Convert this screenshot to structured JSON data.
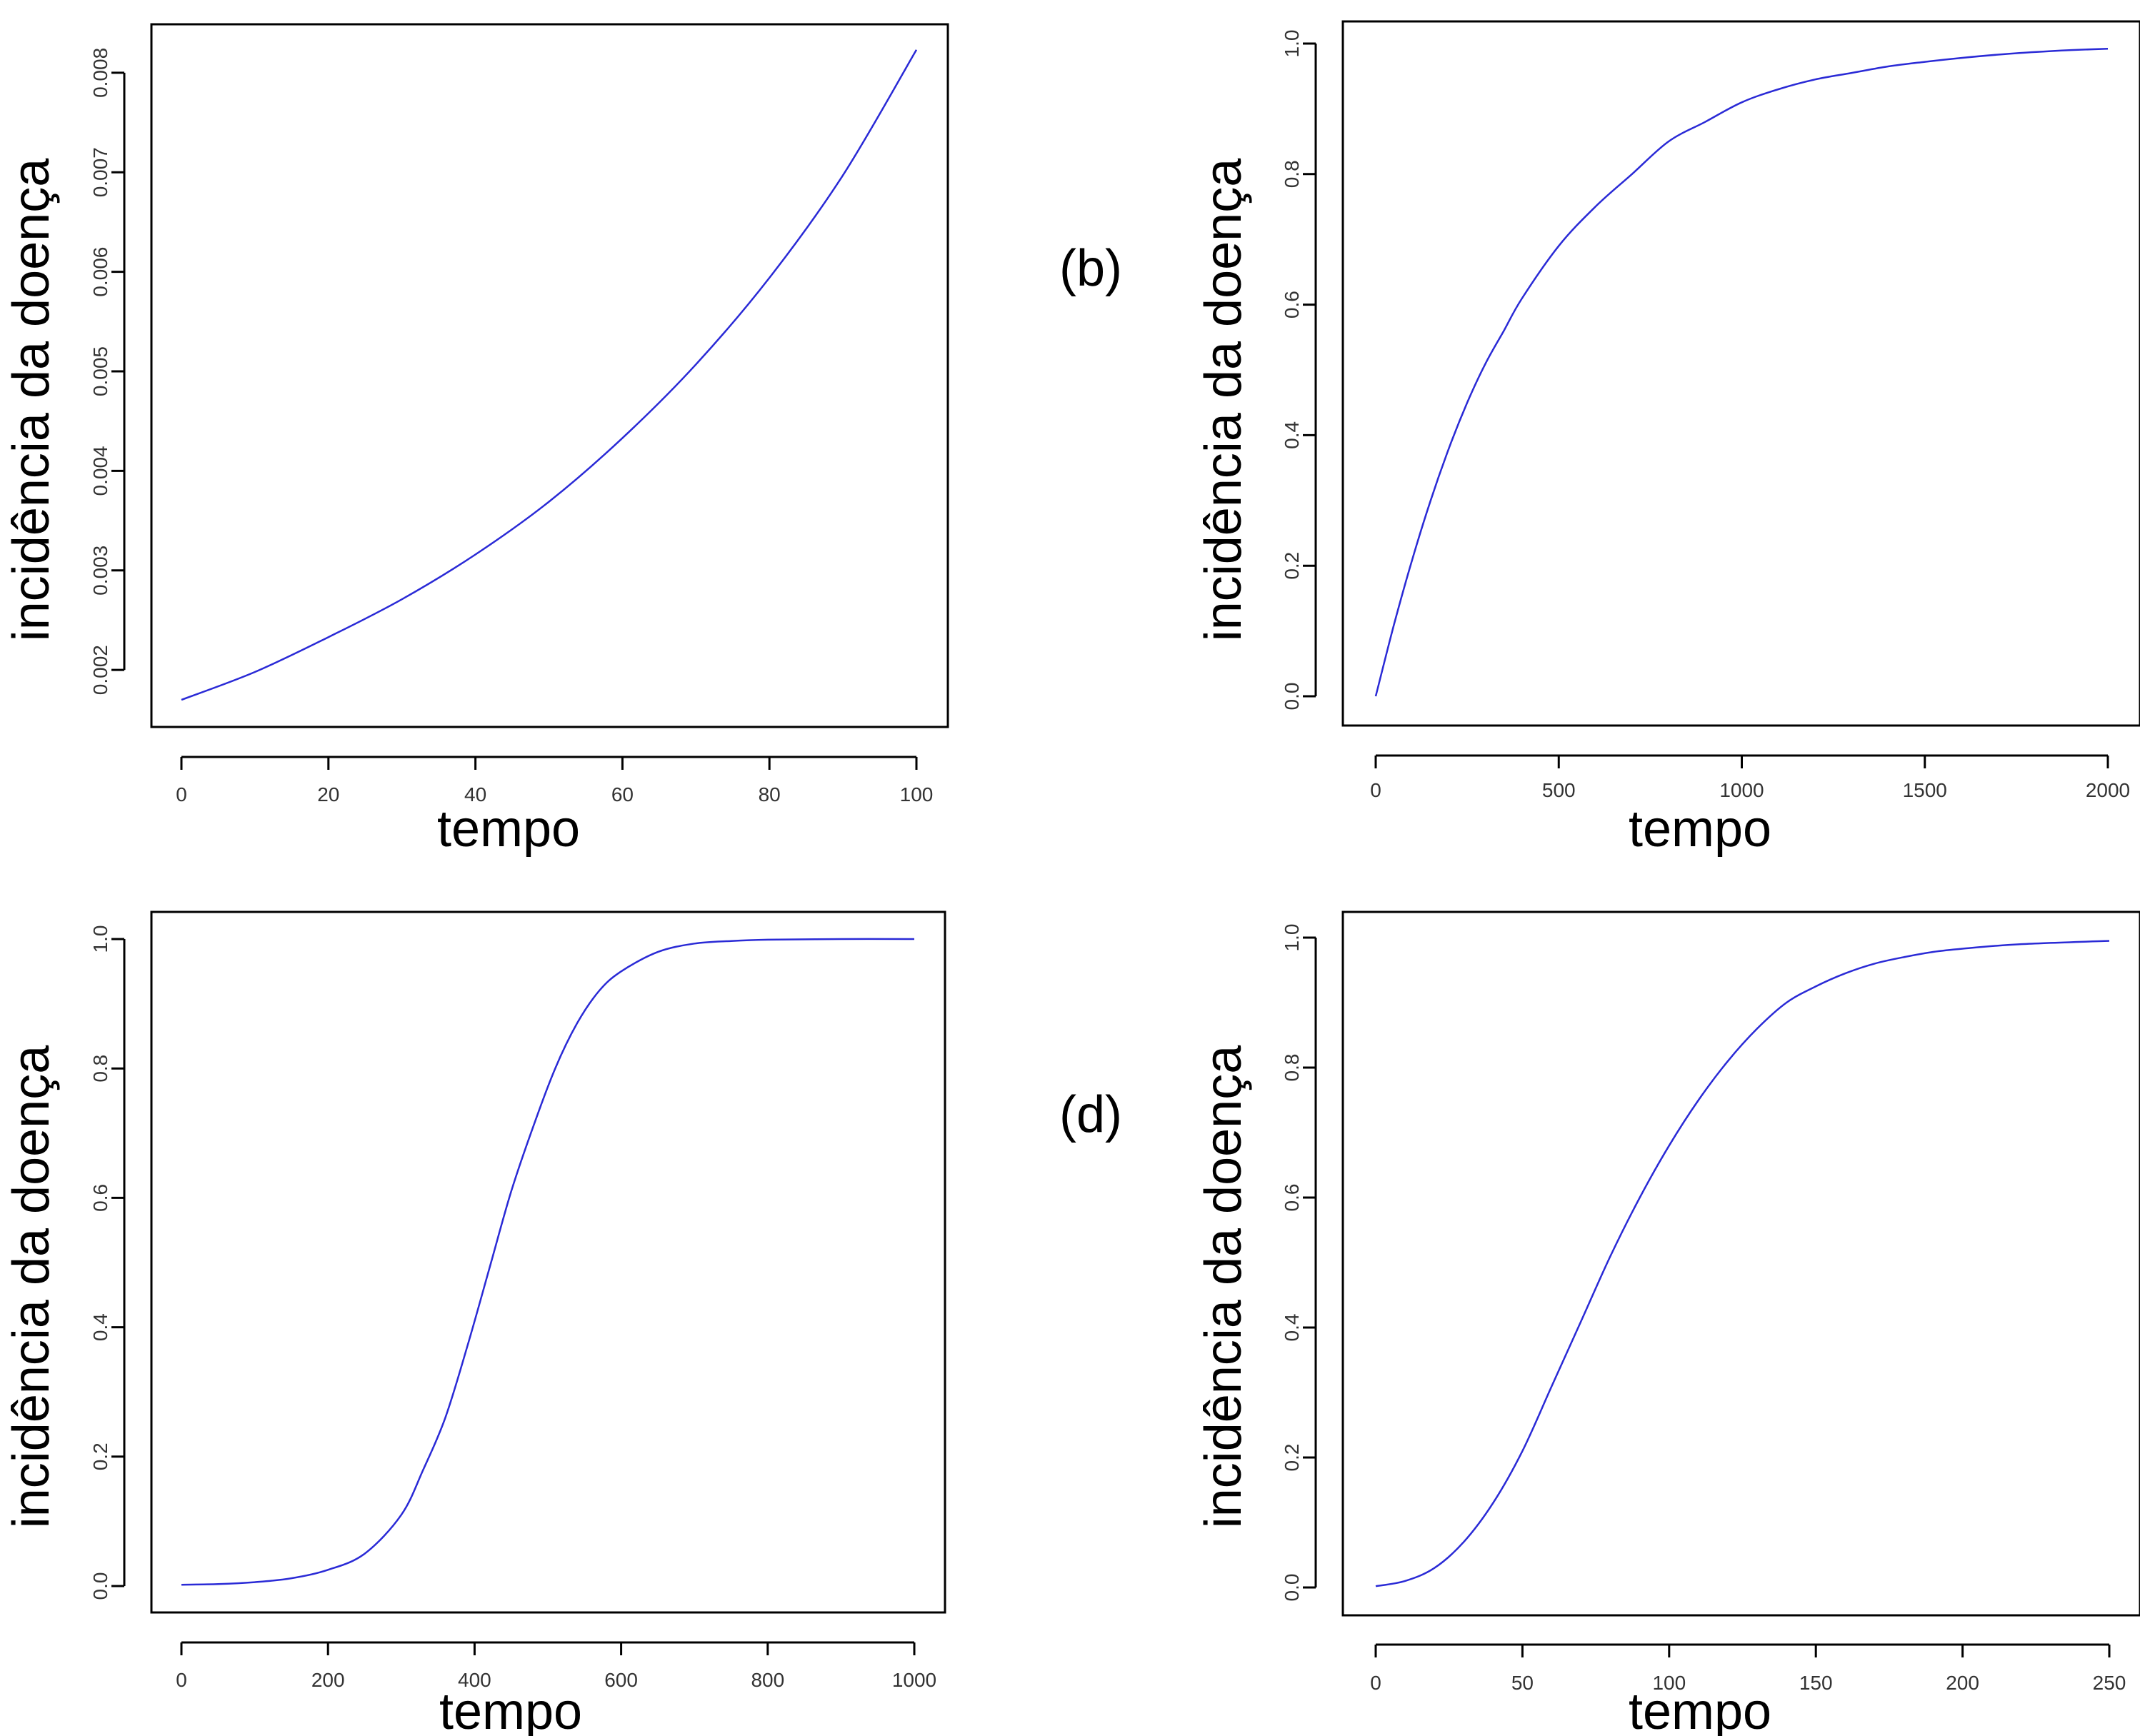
{
  "colors": {
    "curve": "#2a2ad6"
  },
  "chart_data": [
    {
      "id": "a",
      "type": "line",
      "panel_label": "",
      "xlabel": "tempo",
      "ylabel": "incidência da doença",
      "xlim": [
        0,
        100
      ],
      "ylim": [
        0.0017,
        0.0082
      ],
      "xticks": [
        0,
        20,
        40,
        60,
        80,
        100
      ],
      "xtick_labels": [
        "0",
        "20",
        "40",
        "60",
        "80",
        "100"
      ],
      "yticks": [
        0.002,
        0.003,
        0.004,
        0.005,
        0.006,
        0.007,
        0.008
      ],
      "ytick_labels": [
        "0.002",
        "0.003",
        "0.004",
        "0.005",
        "0.006",
        "0.007",
        "0.008"
      ],
      "x": [
        0,
        10,
        20,
        30,
        40,
        50,
        60,
        70,
        80,
        90,
        100
      ],
      "y": [
        0.0017,
        0.00198,
        0.00233,
        0.00271,
        0.00316,
        0.00369,
        0.00433,
        0.00507,
        0.00594,
        0.00697,
        0.00823
      ]
    },
    {
      "id": "b",
      "type": "line",
      "panel_label": "(b)",
      "xlabel": "tempo",
      "ylabel": "incidência da doença",
      "xlim": [
        0,
        2000
      ],
      "ylim": [
        0,
        1
      ],
      "xticks": [
        0,
        500,
        1000,
        1500,
        2000
      ],
      "xtick_labels": [
        "0",
        "500",
        "1000",
        "1500",
        "2000"
      ],
      "yticks": [
        0,
        0.2,
        0.4,
        0.6,
        0.8,
        1.0
      ],
      "ytick_labels": [
        "0.0",
        "0.2",
        "0.4",
        "0.6",
        "0.8",
        "1.0"
      ],
      "x": [
        0,
        50,
        100,
        150,
        200,
        250,
        300,
        350,
        400,
        500,
        600,
        700,
        800,
        900,
        1000,
        1100,
        1200,
        1300,
        1400,
        1500,
        1600,
        1700,
        1800,
        1900,
        2000
      ],
      "y": [
        0.0,
        0.11,
        0.21,
        0.3,
        0.38,
        0.45,
        0.51,
        0.56,
        0.61,
        0.69,
        0.75,
        0.8,
        0.85,
        0.88,
        0.91,
        0.93,
        0.945,
        0.955,
        0.965,
        0.972,
        0.978,
        0.983,
        0.987,
        0.99,
        0.992
      ]
    },
    {
      "id": "c",
      "type": "line",
      "panel_label": "",
      "xlabel": "tempo",
      "ylabel": "incidência da doença",
      "xlim": [
        0,
        1000
      ],
      "ylim": [
        0,
        1
      ],
      "xticks": [
        0,
        200,
        400,
        600,
        800,
        1000
      ],
      "xtick_labels": [
        "0",
        "200",
        "400",
        "600",
        "800",
        "1000"
      ],
      "yticks": [
        0,
        0.2,
        0.4,
        0.6,
        0.8,
        1.0
      ],
      "ytick_labels": [
        "0.0",
        "0.2",
        "0.4",
        "0.6",
        "0.8",
        "1.0"
      ],
      "x": [
        0,
        50,
        100,
        150,
        200,
        250,
        300,
        330,
        360,
        390,
        420,
        450,
        480,
        510,
        540,
        570,
        600,
        650,
        700,
        750,
        800,
        900,
        1000
      ],
      "y": [
        0.002,
        0.003,
        0.006,
        0.012,
        0.025,
        0.05,
        0.11,
        0.18,
        0.26,
        0.37,
        0.49,
        0.61,
        0.71,
        0.8,
        0.87,
        0.92,
        0.95,
        0.98,
        0.993,
        0.997,
        0.999,
        1.0,
        1.0
      ]
    },
    {
      "id": "d",
      "type": "line",
      "panel_label": "(d)",
      "xlabel": "tempo",
      "ylabel": "incidência da doença",
      "xlim": [
        0,
        250
      ],
      "ylim": [
        0,
        1
      ],
      "xticks": [
        0,
        50,
        100,
        150,
        200,
        250
      ],
      "xtick_labels": [
        "0",
        "50",
        "100",
        "150",
        "200",
        "250"
      ],
      "yticks": [
        0,
        0.2,
        0.4,
        0.6,
        0.8,
        1.0
      ],
      "ytick_labels": [
        "0.0",
        "0.2",
        "0.4",
        "0.6",
        "0.8",
        "1.0"
      ],
      "x": [
        0,
        10,
        20,
        30,
        40,
        50,
        60,
        70,
        80,
        90,
        100,
        110,
        120,
        130,
        140,
        150,
        160,
        170,
        180,
        190,
        200,
        220,
        250
      ],
      "y": [
        0.002,
        0.01,
        0.03,
        0.07,
        0.13,
        0.21,
        0.31,
        0.41,
        0.51,
        0.6,
        0.68,
        0.75,
        0.81,
        0.86,
        0.9,
        0.925,
        0.945,
        0.96,
        0.97,
        0.978,
        0.983,
        0.99,
        0.995
      ]
    }
  ]
}
